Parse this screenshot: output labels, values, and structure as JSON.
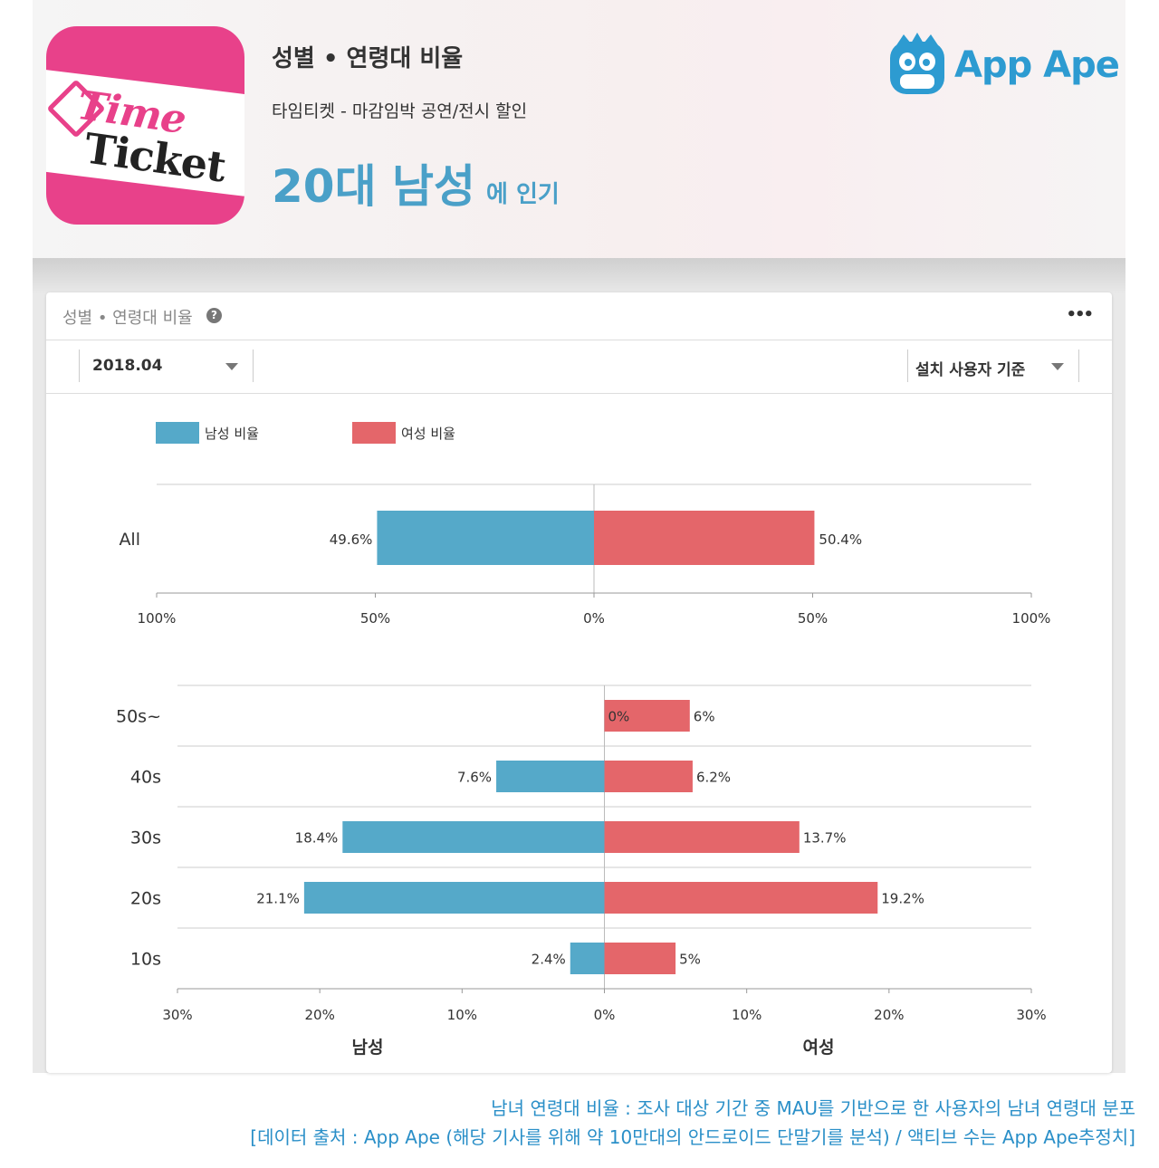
{
  "header": {
    "title": "성별 • 연령대 비율",
    "app_name": "타임티켓 - 마감임박 공연/전시 할인",
    "popular_segment": "20대 남성",
    "popular_suffix": "에 인기",
    "app_icon": {
      "line1": "Time",
      "line2": "Ticket"
    },
    "brand": "App Ape"
  },
  "card": {
    "title": "성별 • 연령대 비율",
    "help_icon": "question-circle-icon",
    "more_icon": "more-dots-icon",
    "period_select": "2018.04",
    "basis_select": "설치 사용자 기준"
  },
  "colors": {
    "male": "#55a9c9",
    "female": "#e4666a",
    "accent": "#4aa0c8"
  },
  "chart_data": [
    {
      "type": "bar",
      "orientation": "horizontal-diverging",
      "categories": [
        "All"
      ],
      "series": [
        {
          "name": "남성 비율",
          "values": [
            49.6
          ],
          "labels": [
            "49.6%"
          ]
        },
        {
          "name": "여성 비율",
          "values": [
            50.4
          ],
          "labels": [
            "50.4%"
          ]
        }
      ],
      "xlim": [
        -100,
        100
      ],
      "x_ticks": [
        "100%",
        "50%",
        "0%",
        "50%",
        "100%"
      ],
      "legend": "top-left"
    },
    {
      "type": "bar",
      "orientation": "horizontal-diverging",
      "categories": [
        "50s~",
        "40s",
        "30s",
        "20s",
        "10s"
      ],
      "series": [
        {
          "name": "남성",
          "values": [
            0,
            7.6,
            18.4,
            21.1,
            2.4
          ],
          "labels": [
            "0%",
            "7.6%",
            "18.4%",
            "21.1%",
            "2.4%"
          ]
        },
        {
          "name": "여성",
          "values": [
            6,
            6.2,
            13.7,
            19.2,
            5
          ],
          "labels": [
            "6%",
            "6.2%",
            "13.7%",
            "19.2%",
            "5%"
          ]
        }
      ],
      "xlim": [
        -30,
        30
      ],
      "x_ticks": [
        "30%",
        "20%",
        "10%",
        "0%",
        "10%",
        "20%",
        "30%"
      ],
      "xlabel_left": "남성",
      "xlabel_right": "여성"
    }
  ],
  "caption": {
    "line1": "남녀 연령대 비율 : 조사 대상 기간 중 MAU를 기반으로 한 사용자의 남녀 연령대 분포",
    "line2": "[데이터 출처 : App Ape (해당 기사를 위해 약 10만대의 안드로이드 단말기를 분석) / 액티브 수는 App Ape추정치]"
  }
}
